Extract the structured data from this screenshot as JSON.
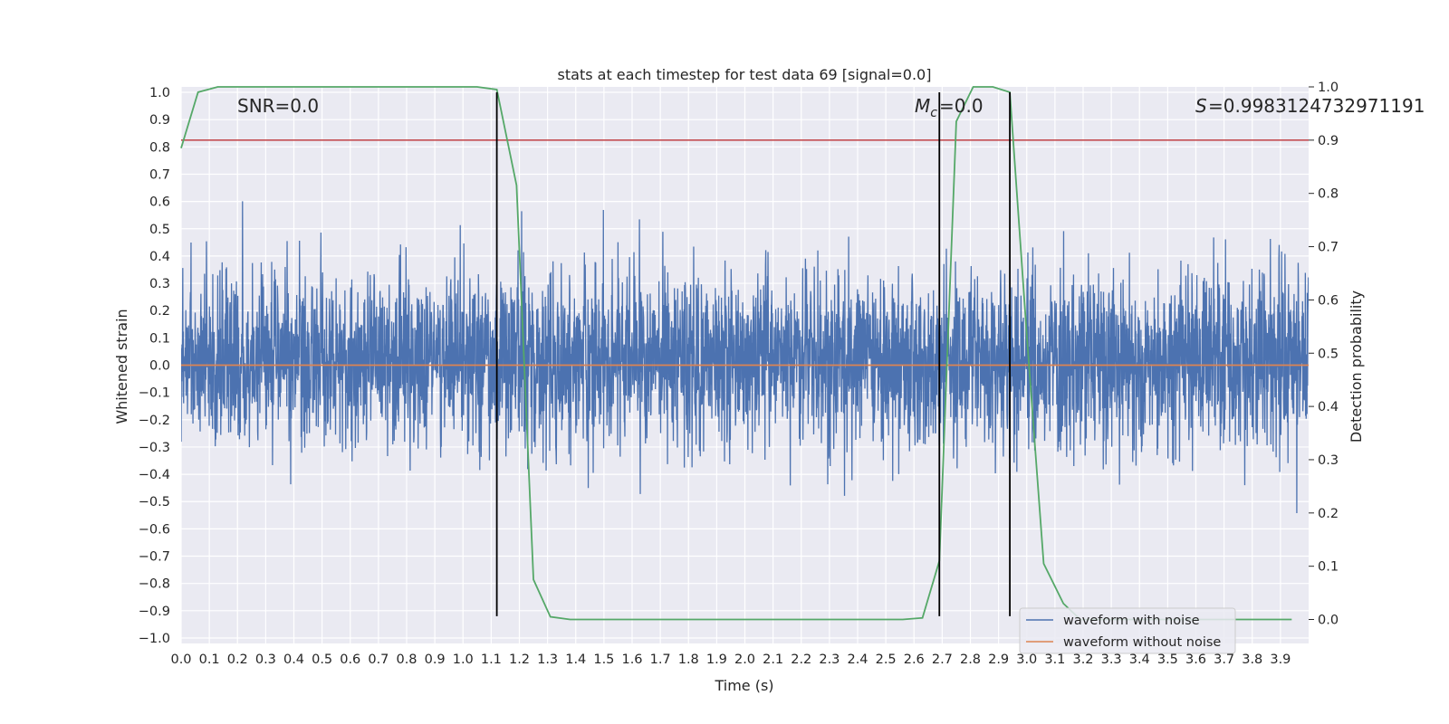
{
  "chart_data": {
    "type": "line",
    "title": "stats at each timestep for test data 69 [signal=0.0]",
    "xlabel": "Time (s)",
    "ylabel": "Whitened strain",
    "y2label": "Detection probability",
    "xlim": [
      0.0,
      4.0
    ],
    "ylim": [
      -1.02,
      1.02
    ],
    "y2lim": [
      -0.045,
      1.0
    ],
    "x_ticks": [
      0.0,
      0.1,
      0.2,
      0.3,
      0.4,
      0.5,
      0.6,
      0.7,
      0.8,
      0.9,
      1.0,
      1.1,
      1.2,
      1.3,
      1.4,
      1.5,
      1.6,
      1.7,
      1.8,
      1.9,
      2.0,
      2.1,
      2.2,
      2.3,
      2.4,
      2.5,
      2.6,
      2.7,
      2.8,
      2.9,
      3.0,
      3.1,
      3.2,
      3.3,
      3.4,
      3.5,
      3.6,
      3.7,
      3.8,
      3.9
    ],
    "x_tick_labels": [
      "0.0",
      "0.1",
      "0.2",
      "0.3",
      "0.4",
      "0.5",
      "0.6",
      "0.7",
      "0.8",
      "0.9",
      "1.0",
      "1.1",
      "1.2",
      "1.3",
      "1.4",
      "1.5",
      "1.6",
      "1.7",
      "1.8",
      "1.9",
      "2.0",
      "2.1",
      "2.2",
      "2.3",
      "2.4",
      "2.5",
      "2.6",
      "2.7",
      "2.8",
      "2.9",
      "3.0",
      "3.1",
      "3.2",
      "3.3",
      "3.4",
      "3.5",
      "3.6",
      "3.7",
      "3.8",
      "3.9"
    ],
    "y_ticks": [
      -1.0,
      -0.9,
      -0.8,
      -0.7,
      -0.6,
      -0.5,
      -0.4,
      -0.3,
      -0.2,
      -0.1,
      0.0,
      0.1,
      0.2,
      0.3,
      0.4,
      0.5,
      0.6,
      0.7,
      0.8,
      0.9,
      1.0
    ],
    "y_tick_labels": [
      "−1.0",
      "−0.9",
      "−0.8",
      "−0.7",
      "−0.6",
      "−0.5",
      "−0.4",
      "−0.3",
      "−0.2",
      "−0.1",
      "0.0",
      "0.1",
      "0.2",
      "0.3",
      "0.4",
      "0.5",
      "0.6",
      "0.7",
      "0.8",
      "0.9",
      "1.0"
    ],
    "y2_ticks": [
      0.0,
      0.1,
      0.2,
      0.3,
      0.4,
      0.5,
      0.6,
      0.7,
      0.8,
      0.9,
      1.0
    ],
    "y2_tick_labels": [
      "0.0",
      "0.1",
      "0.2",
      "0.3",
      "0.4",
      "0.5",
      "0.6",
      "0.7",
      "0.8",
      "0.9",
      "1.0"
    ],
    "grid": true,
    "legend_position": "lower-right",
    "series": [
      {
        "name": "waveform with noise",
        "axis": "left",
        "color": "#4c72b0",
        "kind": "noise",
        "n_samples": 4096,
        "amplitude_range": [
          -0.8,
          1.0
        ],
        "seed": 69
      },
      {
        "name": "waveform without noise",
        "axis": "left",
        "color": "#dd8452",
        "x": [
          0.0,
          4.0
        ],
        "y": [
          0.0,
          0.0
        ]
      },
      {
        "axis": "right",
        "color": "#55a868",
        "x": [
          0.0,
          0.06,
          0.13,
          0.5,
          1.05,
          1.12,
          1.19,
          1.25,
          1.31,
          1.38,
          1.75,
          2.2,
          2.56,
          2.63,
          2.69,
          2.75,
          2.81,
          2.88,
          2.94,
          3.0,
          3.06,
          3.13,
          3.19,
          3.5,
          3.94
        ],
        "y": [
          0.885,
          0.99,
          1.0,
          1.0,
          1.0,
          0.995,
          0.815,
          0.075,
          0.005,
          0.0,
          0.0,
          0.0,
          0.0,
          0.003,
          0.11,
          0.935,
          1.0,
          1.0,
          0.99,
          0.535,
          0.105,
          0.03,
          0.0,
          0.0,
          0.0
        ]
      },
      {
        "axis": "right",
        "color": "#c44e52",
        "x": [
          0.0,
          4.0
        ],
        "y": [
          0.9,
          0.9
        ]
      }
    ],
    "vertical_lines": [
      {
        "x": 1.12,
        "color": "#000000"
      },
      {
        "x": 2.69,
        "color": "#000000"
      },
      {
        "x": 2.94,
        "color": "#000000"
      }
    ],
    "annotations": {
      "snr": "SNR=0.0",
      "mc": "=0.0",
      "s": "=0.9983124732971191"
    }
  }
}
